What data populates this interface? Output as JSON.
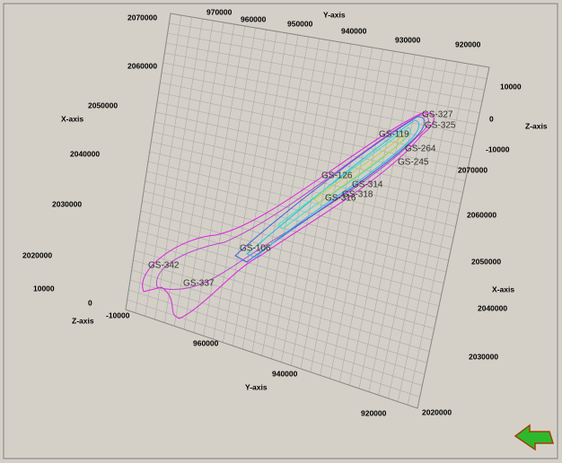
{
  "axes": {
    "y_top": {
      "label": "Y-axis",
      "ticks": [
        970000,
        960000,
        950000,
        940000,
        930000,
        920000
      ]
    },
    "x_left": {
      "label": "X-axis",
      "ticks": [
        2070000,
        2060000,
        2050000,
        2040000,
        2030000,
        2020000
      ]
    },
    "z_left": {
      "label": "Z-axis",
      "ticks": [
        10000,
        0,
        -10000
      ]
    },
    "y_bottom": {
      "label": "Y-axis",
      "ticks": [
        960000,
        940000,
        920000
      ]
    },
    "x_right": {
      "label": "X-axis",
      "ticks": [
        2070000,
        2060000,
        2050000,
        2040000,
        2030000,
        2020000
      ]
    },
    "z_right": {
      "label": "Z-axis",
      "ticks": [
        10000,
        0,
        -10000
      ]
    }
  },
  "wells": [
    "GS-327",
    "GS-325",
    "GS-119",
    "GS-264",
    "GS-245",
    "GS-126",
    "GS-314",
    "GS-318",
    "GS-316",
    "GS-106",
    "GS-342",
    "GS-337"
  ]
}
